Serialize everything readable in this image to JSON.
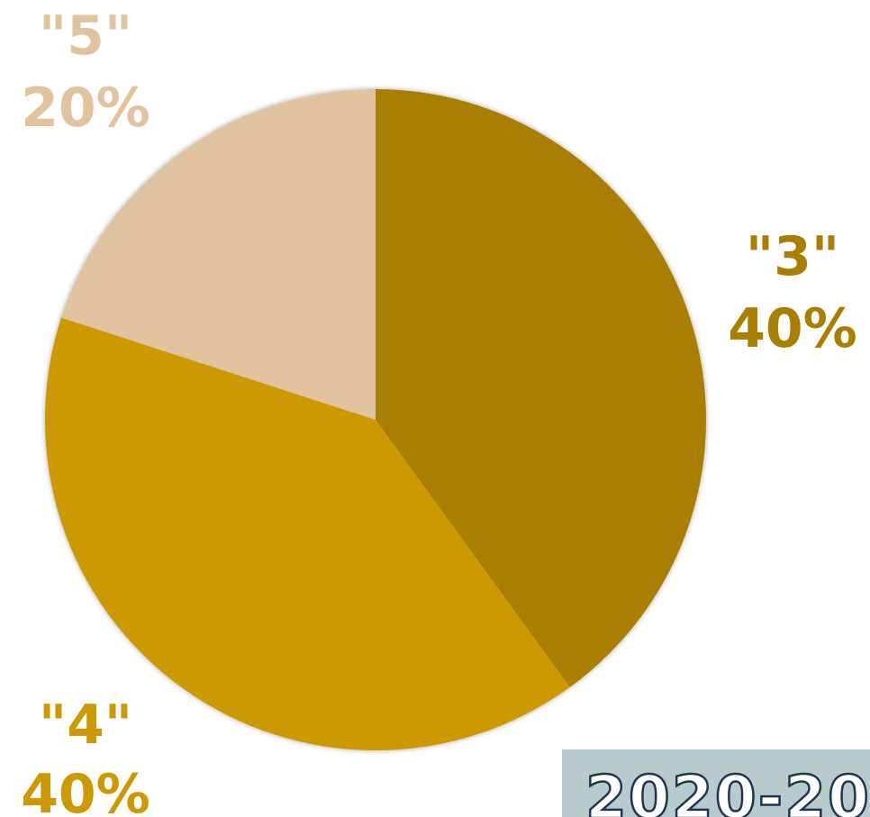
{
  "chart_data": {
    "type": "pie",
    "categories": [
      "\"3\"",
      "\"4\"",
      "\"5\""
    ],
    "values": [
      40,
      40,
      20
    ],
    "value_labels": [
      "40%",
      "40%",
      "20%"
    ],
    "colors": [
      "#a87f00",
      "#cc9a00",
      "#e0c4a0"
    ],
    "annotation": "2020-20"
  }
}
